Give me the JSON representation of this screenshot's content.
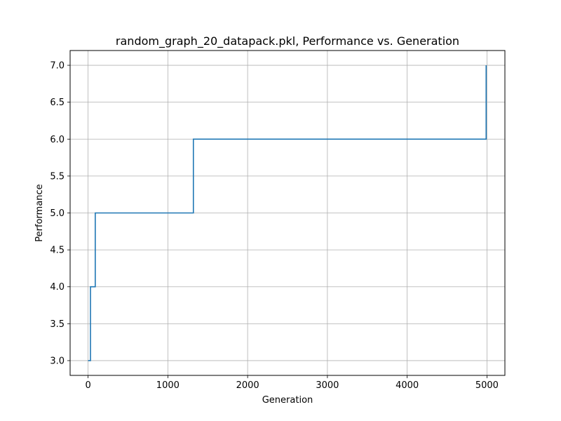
{
  "chart_data": {
    "type": "line",
    "drawstyle": "steps-post",
    "title": "random_graph_20_datapack.pkl, Performance vs. Generation",
    "xlabel": "Generation",
    "ylabel": "Performance",
    "xlim": [
      -225,
      5225
    ],
    "ylim": [
      2.8,
      7.2
    ],
    "xticks": [
      0,
      1000,
      2000,
      3000,
      4000,
      5000
    ],
    "xtick_labels": [
      "0",
      "1000",
      "2000",
      "3000",
      "4000",
      "5000"
    ],
    "yticks": [
      3.0,
      3.5,
      4.0,
      4.5,
      5.0,
      5.5,
      6.0,
      6.5,
      7.0
    ],
    "ytick_labels": [
      "3.0",
      "3.5",
      "4.0",
      "4.5",
      "5.0",
      "5.5",
      "6.0",
      "6.5",
      "7.0"
    ],
    "grid": true,
    "series": [
      {
        "color": "#1f77b4",
        "x": [
          0,
          30,
          90,
          1320,
          4990,
          4990
        ],
        "y": [
          3.0,
          4.0,
          5.0,
          6.0,
          6.0,
          7.0
        ]
      }
    ]
  }
}
